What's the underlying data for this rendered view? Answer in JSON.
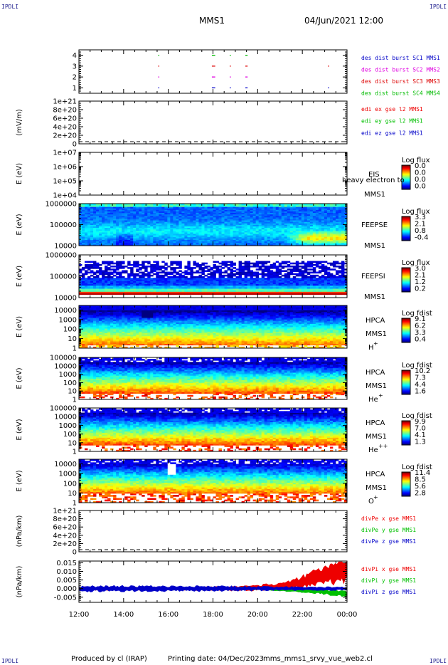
{
  "header": {
    "corner_label": "IPDLI",
    "spacecraft": "MMS1",
    "datetime": "04/Jun/2021 12:00"
  },
  "footer": {
    "produced_by": "Produced by cl (IRAP)",
    "printing_date": "Printing date: 04/Dec/2023",
    "script_name": "mms_mms1_srvy_vue_web2.cl"
  },
  "colors": {
    "mms1": "#0000c8",
    "mms2": "#e000e0",
    "mms3": "#dd0000",
    "mms4": "#00bb00",
    "x_comp": "#ee0000",
    "y_comp": "#00c000",
    "z_comp": "#0000c8"
  },
  "chart_data": [
    {
      "type": "scatter",
      "id": "burst",
      "ylim": [
        0.5,
        4.5
      ],
      "ticks": [
        "1",
        "2",
        "3",
        "4"
      ],
      "ylabel": "",
      "legend": [
        {
          "name": "des dist burst SC1 MMS1",
          "color": "#0000c8"
        },
        {
          "name": "des dist burst SC2 MMS2",
          "color": "#e000e0"
        },
        {
          "name": "des dist burst SC3 MMS3",
          "color": "#dd0000"
        },
        {
          "name": "des dist burst SC4 MMS4",
          "color": "#00bb00"
        }
      ],
      "segments": [
        {
          "spacecraft": 4,
          "x_start": 15.55,
          "x_end": 15.58
        },
        {
          "spacecraft": 4,
          "x_start": 17.95,
          "x_end": 18.1
        },
        {
          "spacecraft": 4,
          "x_start": 18.75,
          "x_end": 18.8
        },
        {
          "spacecraft": 4,
          "x_start": 19.45,
          "x_end": 19.55
        },
        {
          "spacecraft": 3,
          "x_start": 15.55,
          "x_end": 15.58
        },
        {
          "spacecraft": 3,
          "x_start": 17.95,
          "x_end": 18.1
        },
        {
          "spacecraft": 3,
          "x_start": 18.75,
          "x_end": 18.8
        },
        {
          "spacecraft": 3,
          "x_start": 19.45,
          "x_end": 19.55
        },
        {
          "spacecraft": 3,
          "x_start": 23.15,
          "x_end": 23.2
        },
        {
          "spacecraft": 2,
          "x_start": 15.55,
          "x_end": 15.58
        },
        {
          "spacecraft": 2,
          "x_start": 17.95,
          "x_end": 18.1
        },
        {
          "spacecraft": 2,
          "x_start": 18.75,
          "x_end": 18.8
        },
        {
          "spacecraft": 2,
          "x_start": 19.45,
          "x_end": 19.55
        },
        {
          "spacecraft": 1,
          "x_start": 15.55,
          "x_end": 15.58
        },
        {
          "spacecraft": 1,
          "x_start": 17.95,
          "x_end": 18.1
        },
        {
          "spacecraft": 1,
          "x_start": 18.75,
          "x_end": 18.8
        },
        {
          "spacecraft": 1,
          "x_start": 19.45,
          "x_end": 19.55
        },
        {
          "spacecraft": 1,
          "x_start": 23.15,
          "x_end": 23.2
        }
      ]
    },
    {
      "type": "line",
      "id": "edi",
      "ylabel": "(mV/m)",
      "ylim": [
        0,
        1e+21
      ],
      "ticks": [
        "0",
        "2e+20",
        "4e+20",
        "6e+20",
        "8e+20",
        "1e+21"
      ],
      "dashed_zero": true,
      "legend": [
        {
          "name": "edi ex gse l2 MMS1",
          "color": "#ee0000"
        },
        {
          "name": "edi ey gse l2 MMS1",
          "color": "#00c000"
        },
        {
          "name": "edi ez gse l2 MMS1",
          "color": "#0000c8"
        }
      ]
    },
    {
      "type": "heatmap",
      "id": "eis",
      "ylabel": "E (eV)",
      "log": true,
      "ylim": [
        10000,
        10000000
      ],
      "ticks": [
        "1e+04",
        "1e+05",
        "1e+06",
        "1e+07"
      ],
      "labels": [
        "EIS",
        "MMS1"
      ],
      "overlay_text": "heavy electron to",
      "colorbar_title": "Log flux",
      "colorbar_ticks": [
        "0.0",
        "0.0",
        "0.0",
        "0.0"
      ]
    },
    {
      "type": "heatmap",
      "id": "feepse",
      "ylabel": "E (eV)",
      "log": true,
      "ylim": [
        10000,
        1000000
      ],
      "ticks": [
        "10000",
        "100000",
        "1000000"
      ],
      "labels": [
        "FEEPSE",
        "MMS1"
      ],
      "colorbar_title": "Log flux",
      "colorbar_ticks": [
        "3.3",
        "2.1",
        "0.8",
        "-0.4"
      ],
      "profile": "feepse"
    },
    {
      "type": "heatmap",
      "id": "feepsi",
      "ylabel": "E (eV)",
      "log": true,
      "ylim": [
        10000,
        1000000
      ],
      "ticks": [
        "10000",
        "100000",
        "1000000"
      ],
      "labels": [
        "FEEPSI",
        "MMS1"
      ],
      "colorbar_title": "Log flux",
      "colorbar_ticks": [
        "3.0",
        "2.1",
        "1.2",
        "0.2"
      ],
      "profile": "feepsi"
    },
    {
      "type": "heatmap",
      "id": "hpca_h",
      "ylabel": "E (eV)",
      "log": true,
      "ylim": [
        1,
        30000
      ],
      "ticks": [
        "1",
        "10",
        "100",
        "1000",
        "10000"
      ],
      "labels": [
        "HPCA",
        "MMS1"
      ],
      "species": "H",
      "species_charge": "+",
      "colorbar_title": "Log fdist",
      "colorbar_ticks": [
        "9.1",
        "6.2",
        "3.3",
        "0.4"
      ],
      "profile": "hplus"
    },
    {
      "type": "heatmap",
      "id": "hpca_he1",
      "ylabel": "E (eV)",
      "log": true,
      "ylim": [
        1,
        100000
      ],
      "ticks": [
        "1",
        "10",
        "100",
        "1000",
        "10000",
        "100000"
      ],
      "labels": [
        "HPCA",
        "MMS1"
      ],
      "species": "He",
      "species_charge": "+",
      "colorbar_title": "Log fdist",
      "colorbar_ticks": [
        "10.2",
        "7.3",
        "4.4",
        "1.6"
      ],
      "profile": "heplus"
    },
    {
      "type": "heatmap",
      "id": "hpca_he2",
      "ylabel": "E (eV)",
      "log": true,
      "ylim": [
        1,
        100000
      ],
      "ticks": [
        "1",
        "10",
        "100",
        "1000",
        "10000",
        "100000"
      ],
      "labels": [
        "HPCA",
        "MMS1"
      ],
      "species": "He",
      "species_charge": "++",
      "colorbar_title": "Log fdist",
      "colorbar_ticks": [
        "9.9",
        "7.0",
        "4.1",
        "1.3"
      ],
      "profile": "heplusplus"
    },
    {
      "type": "heatmap",
      "id": "hpca_o",
      "ylabel": "E (eV)",
      "log": true,
      "ylim": [
        1,
        30000
      ],
      "ticks": [
        "1",
        "10",
        "100",
        "1000",
        "10000"
      ],
      "labels": [
        "HPCA",
        "MMS1"
      ],
      "species": "O",
      "species_charge": "+",
      "colorbar_title": "Log fdist",
      "colorbar_ticks": [
        "11.4",
        "8.5",
        "5.6",
        "2.8"
      ],
      "profile": "oplus"
    },
    {
      "type": "line",
      "id": "divpe",
      "ylabel": "(nPa/km)",
      "ylim": [
        0,
        1e+21
      ],
      "ticks": [
        "0",
        "2e+20",
        "4e+20",
        "6e+20",
        "8e+20",
        "1e+21"
      ],
      "dashed_zero": true,
      "legend": [
        {
          "name": "divPe x gse MMS1",
          "color": "#ee0000"
        },
        {
          "name": "divPe y gse MMS1",
          "color": "#00c000"
        },
        {
          "name": "divPe z gse MMS1",
          "color": "#0000c8"
        }
      ]
    },
    {
      "type": "line",
      "id": "divpi",
      "ylabel": "(nPa/km)",
      "ylim": [
        -0.008,
        0.016
      ],
      "ticks": [
        "-0.005",
        "0.000",
        "0.005",
        "0.010",
        "0.015"
      ],
      "legend": [
        {
          "name": "divPi x gse MMS1",
          "color": "#ee0000"
        },
        {
          "name": "divPi y gse MMS1",
          "color": "#00c000"
        },
        {
          "name": "divPi z gse MMS1",
          "color": "#0000c8"
        }
      ],
      "series": [
        {
          "name": "divPi x gse MMS1",
          "x": [
            12,
            14,
            16,
            18,
            19,
            20,
            21,
            21.5,
            22,
            22.5,
            23,
            23.5,
            24
          ],
          "y": [
            0.0,
            0.0,
            0.0,
            0.0,
            0.0,
            0.0005,
            0.001,
            0.002,
            0.004,
            0.006,
            0.008,
            0.009,
            0.011
          ],
          "amp": [
            0.0012,
            0.001,
            0.001,
            0.0012,
            0.0015,
            0.002,
            0.0025,
            0.003,
            0.004,
            0.005,
            0.006,
            0.007,
            0.009
          ]
        },
        {
          "name": "divPi y gse MMS1",
          "x": [
            12,
            14,
            16,
            18,
            19,
            20,
            21,
            22,
            23,
            24
          ],
          "y": [
            0.0,
            0.0,
            0.0,
            0.0,
            0.0,
            0.0,
            -0.0005,
            -0.001,
            -0.002,
            -0.003
          ],
          "amp": [
            0.0008,
            0.0008,
            0.0008,
            0.0008,
            0.001,
            0.001,
            0.0012,
            0.0015,
            0.0018,
            0.002
          ]
        },
        {
          "name": "divPi z gse MMS1",
          "x": [
            12,
            14,
            16,
            18,
            20,
            22,
            24
          ],
          "y": [
            -0.0002,
            0.0,
            0.0,
            0.0,
            0.0,
            0.0,
            0.0
          ],
          "amp": [
            0.0018,
            0.002,
            0.0018,
            0.0018,
            0.0015,
            0.0012,
            0.0012
          ]
        }
      ]
    }
  ],
  "xaxis": {
    "range": [
      12,
      24
    ],
    "ticks": [
      "12:00",
      "14:00",
      "16:00",
      "18:00",
      "20:00",
      "22:00",
      "00:00"
    ]
  }
}
